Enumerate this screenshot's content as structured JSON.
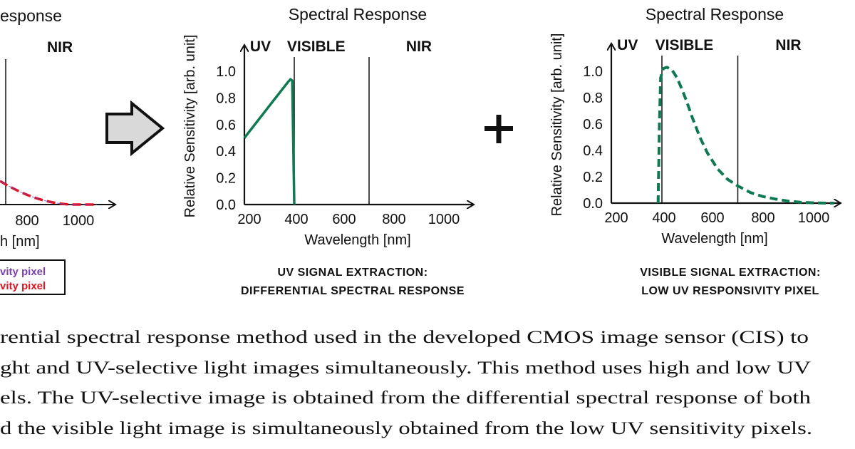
{
  "colors": {
    "green": "#0f7a52",
    "red": "#e3121f",
    "purple": "#7b3fb0",
    "arrow_fill": "#d9d9d9"
  },
  "left_panel": {
    "title_fragment": "esponse",
    "region_nir": "NIR",
    "ticks": [
      "800",
      "1000"
    ],
    "xlabel_fragment": "h [nm]",
    "legend": [
      "vity pixel",
      "vity pixel"
    ]
  },
  "operators": {
    "plus": "+",
    "arrow_icon": "block-arrow-right"
  },
  "chart_data": [
    {
      "type": "line",
      "title": "Spectral Response",
      "regions": [
        "UV",
        "VISIBLE",
        "NIR"
      ],
      "region_boundaries": [
        400,
        700
      ],
      "xlabel": "Wavelength [nm]",
      "ylabel": "Relative Sensitivity [arb. unit]",
      "xticks": [
        "200",
        "400",
        "600",
        "800",
        "1000"
      ],
      "yticks": [
        "0.0",
        "0.2",
        "0.4",
        "0.6",
        "0.8",
        "1.0"
      ],
      "xlim": [
        200,
        1100
      ],
      "ylim": [
        0,
        1.15
      ],
      "grid": false,
      "series": [
        {
          "style": "solid",
          "color": "#0f7a52",
          "x": [
            200,
            250,
            300,
            350,
            375,
            385,
            392,
            400
          ],
          "y": [
            0.5,
            0.62,
            0.74,
            0.86,
            0.92,
            0.94,
            0.93,
            0.0
          ]
        }
      ],
      "caption": [
        "UV SIGNAL EXTRACTION:",
        "DIFFERENTIAL SPECTRAL RESPONSE"
      ]
    },
    {
      "type": "line",
      "title": "Spectral Response",
      "regions": [
        "UV",
        "VISIBLE",
        "NIR"
      ],
      "region_boundaries": [
        400,
        700
      ],
      "xlabel": "Wavelength [nm]",
      "ylabel": "Relative Sensitivity [arb. unit]",
      "xticks": [
        "200",
        "400",
        "600",
        "800",
        "1000"
      ],
      "yticks": [
        "0.0",
        "0.2",
        "0.4",
        "0.6",
        "0.8",
        "1.0"
      ],
      "xlim": [
        200,
        1100
      ],
      "ylim": [
        0,
        1.15
      ],
      "grid": false,
      "series": [
        {
          "style": "dashed",
          "color": "#0f7a52",
          "x": [
            385,
            390,
            395,
            405,
            420,
            440,
            460,
            480,
            500,
            520,
            550,
            580,
            620,
            660,
            700,
            750,
            800,
            850,
            900,
            950,
            1000,
            1050,
            1080
          ],
          "y": [
            0.0,
            0.6,
            0.95,
            1.02,
            1.03,
            1.01,
            0.95,
            0.86,
            0.76,
            0.65,
            0.5,
            0.38,
            0.26,
            0.18,
            0.13,
            0.08,
            0.05,
            0.03,
            0.015,
            0.006,
            0.002,
            0.0,
            0.0
          ]
        }
      ],
      "caption": [
        "VISIBLE SIGNAL EXTRACTION:",
        "LOW UV RESPONSIVITY PIXEL"
      ]
    }
  ],
  "body_text": [
    "rential spectral response method used in the developed CMOS image sensor (CIS) to",
    "ght and UV-selective light images simultaneously. This method uses high and low UV",
    "els. The UV-selective image is obtained from the differential spectral response of both",
    "d the visible light image is simultaneously obtained from the low UV sensitivity pixels."
  ]
}
